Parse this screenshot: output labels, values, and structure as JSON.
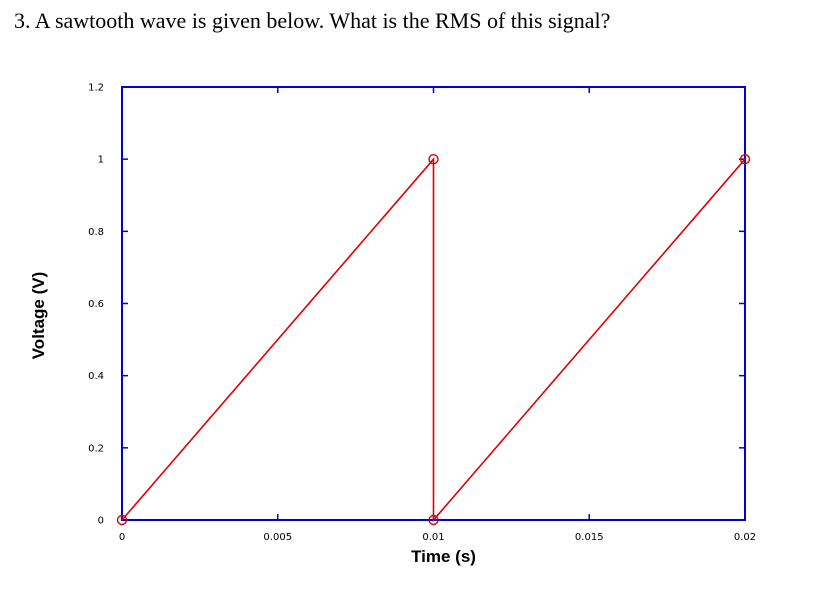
{
  "question": "3. A sawtooth wave is given below. What is the RMS of this signal?",
  "chart_data": {
    "type": "line",
    "xlabel": "Time (s)",
    "ylabel": "Voltage (V)",
    "xlim": [
      0,
      0.02
    ],
    "ylim": [
      0,
      1.2
    ],
    "x_ticks": [
      "0",
      "0.005",
      "0.01",
      "0.015",
      "0.02"
    ],
    "y_ticks": [
      "0",
      "0.2",
      "0.4",
      "0.6",
      "0.8",
      "1",
      "1.2"
    ],
    "grid": false,
    "series": [
      {
        "x": [
          0,
          0.01,
          0.01,
          0.02
        ],
        "y": [
          0,
          1,
          0,
          1
        ],
        "marker": "circle",
        "color": "#e00000"
      }
    ],
    "axes_color": "#0000dd"
  }
}
